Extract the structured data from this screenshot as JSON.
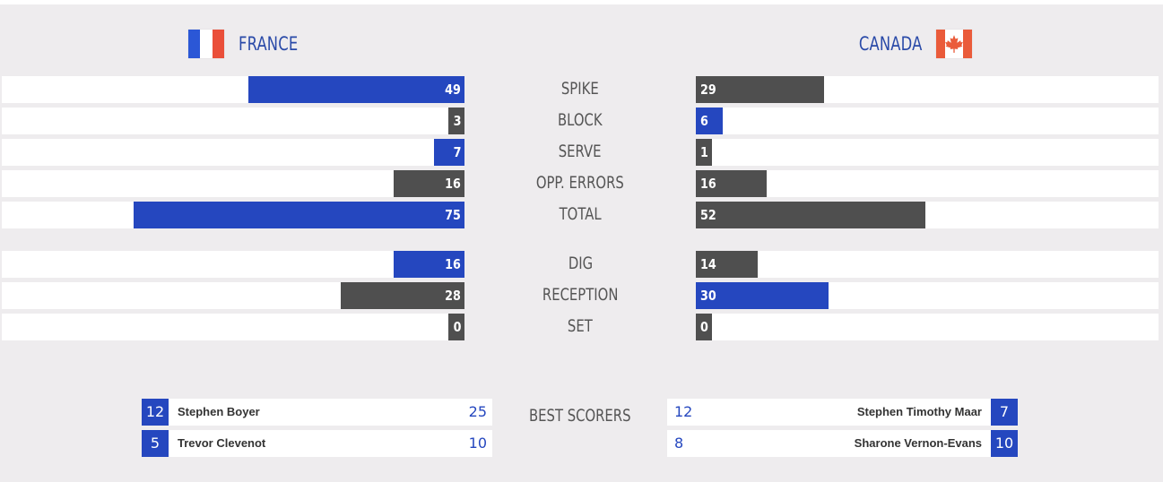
{
  "teams": {
    "left": {
      "name": "FRANCE",
      "flag_colors": [
        "#2b57d6",
        "#ffffff",
        "#ea4f3a"
      ]
    },
    "right": {
      "name": "CANADA",
      "flag_colors": [
        "#ea5b3a",
        "#ffffff",
        "#ea5b3a"
      ]
    }
  },
  "colors": {
    "highlight": "#2547bf",
    "neutral": "#4f4f4f",
    "background": "#eeecee"
  },
  "stats": [
    {
      "label": "SPIKE",
      "left": 49,
      "right": 29,
      "leader": "left",
      "left_text": "49",
      "right_text": "29"
    },
    {
      "label": "BLOCK",
      "left": 3,
      "right": 6,
      "leader": "right",
      "left_text": "3",
      "right_text": "6"
    },
    {
      "label": "SERVE",
      "left": 7,
      "right": 1,
      "leader": "left",
      "left_text": "7",
      "right_text": "1"
    },
    {
      "label": "OPP. ERRORS",
      "left": 16,
      "right": 16,
      "leader": "none",
      "left_text": "16",
      "right_text": "16"
    },
    {
      "label": "TOTAL",
      "left": 75,
      "right": 52,
      "leader": "left",
      "left_text": "75",
      "right_text": "52"
    },
    {
      "label": "DIG",
      "left": 16,
      "right": 14,
      "leader": "left",
      "left_text": "16",
      "right_text": "14"
    },
    {
      "label": "RECEPTION",
      "left": 28,
      "right": 30,
      "leader": "right",
      "left_text": "28",
      "right_text": "30"
    },
    {
      "label": "SET",
      "left": 0,
      "right": 0,
      "leader": "none",
      "left_text": "0",
      "right_text": "0"
    }
  ],
  "best_scorers": {
    "label": "BEST SCORERS",
    "left": [
      {
        "number": "12",
        "name": "Stephen Boyer",
        "points": "25"
      },
      {
        "number": "5",
        "name": "Trevor Clevenot",
        "points": "10"
      }
    ],
    "right": [
      {
        "number": "12",
        "name": "Stephen Timothy Maar",
        "points": "7"
      },
      {
        "number": "8",
        "name": "Sharone Vernon-Evans",
        "points": "10"
      }
    ]
  }
}
